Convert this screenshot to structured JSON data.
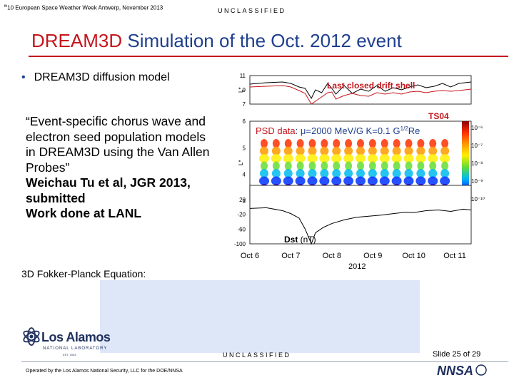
{
  "header": {
    "meta_sup": "th",
    "meta": "10  European Space Weather Week Antwerp, November 2013",
    "classification": "UNCLASSIFIED"
  },
  "title": {
    "highlight": "DREAM3D",
    "rest": " Simulation of the Oct. 2012 event"
  },
  "bullet": "DREAM3D diffusion model",
  "quote": {
    "text": "“Event-specific chorus wave and electron seed population models in DREAM3D using the Van Allen Probes”",
    "author": "Weichau Tu et al, JGR 2013, submitted",
    "note": "Work done at LANL"
  },
  "equation_label": "3D Fokker-Planck Equation:",
  "footer": {
    "classification": "UNCLASSIFIED",
    "slide": "Slide 25  of 29",
    "operated_by": "Operated by the Los Alamos National Security, LLC for the DOE/NNSA",
    "logo_name": "Los Alamos",
    "logo_sub": "NATIONAL LABORATORY",
    "logo_est": "EST. 1943",
    "nnsa": "NNSA"
  },
  "chart_data": [
    {
      "type": "line",
      "panel": "last closed drift shell",
      "series": [
        {
          "name": "Last closed drift shell",
          "color": "#000000",
          "x": [
            6.0,
            6.4,
            6.8,
            7.0,
            7.2,
            7.35,
            7.5,
            7.6,
            7.75,
            7.9,
            8.0,
            8.1,
            8.3,
            8.5,
            8.7,
            8.9,
            9.1,
            9.3,
            9.5,
            9.7,
            9.9,
            10.1,
            10.3,
            10.5,
            10.7,
            10.9,
            11.1,
            11.4
          ],
          "values": [
            9.8,
            10.0,
            10.1,
            9.9,
            9.4,
            9.2,
            7.8,
            9.0,
            8.6,
            9.9,
            9.2,
            8.4,
            9.6,
            8.5,
            9.1,
            8.8,
            9.6,
            8.8,
            9.3,
            9.0,
            9.4,
            9.7,
            9.3,
            9.5,
            9.9,
            9.4,
            9.9,
            10.1
          ]
        },
        {
          "name": "TS04",
          "color": "#c4161c",
          "x": [
            6.0,
            6.4,
            6.8,
            7.0,
            7.2,
            7.35,
            7.5,
            7.6,
            7.75,
            7.9,
            8.0,
            8.1,
            8.3,
            8.5,
            8.7,
            8.9,
            9.1,
            9.3,
            9.5,
            9.7,
            9.9,
            10.1,
            10.3,
            10.5,
            10.7,
            10.9,
            11.1,
            11.4
          ],
          "values": [
            9.4,
            9.5,
            9.6,
            9.4,
            8.9,
            8.5,
            7.0,
            7.4,
            8.0,
            8.6,
            8.7,
            7.7,
            8.2,
            8.5,
            8.2,
            8.1,
            8.6,
            8.4,
            8.6,
            8.4,
            8.7,
            8.8,
            8.6,
            8.8,
            8.9,
            8.8,
            8.9,
            9.1
          ]
        }
      ],
      "ylabel": "L*",
      "yticks": [
        "11",
        "9",
        "7"
      ],
      "ylim": [
        7,
        11
      ],
      "annotations": [
        "Last closed drift shell",
        "TS04"
      ]
    },
    {
      "type": "heatmap",
      "panel": "phase space density",
      "title_label": "PSD data",
      "title_value": ": μ=2000 MeV/G K=0.1 G",
      "title_sup": "1/2",
      "title_tail": "Re",
      "ylabel": "L*",
      "yticks": [
        "6",
        "5",
        "4",
        "3"
      ],
      "ylim": [
        3,
        6
      ],
      "colorbar_ticks": [
        "10⁻⁶",
        "10⁻⁷",
        "10⁻⁸",
        "10⁻⁹",
        "10⁻¹⁰"
      ],
      "colorbar_colors": [
        "#8b0000",
        "#ff3000",
        "#ff9900",
        "#ffee00",
        "#66dd33",
        "#00bbee",
        "#0033ff",
        "#4400aa"
      ]
    },
    {
      "type": "line",
      "panel": "Dst",
      "series_label": "Dst",
      "series_unit": " (nT)",
      "series": [
        {
          "name": "Dst",
          "color": "#000000",
          "x": [
            6.0,
            6.4,
            6.8,
            7.0,
            7.2,
            7.35,
            7.5,
            7.6,
            7.8,
            8.0,
            8.3,
            8.6,
            8.9,
            9.2,
            9.5,
            9.8,
            10.0,
            10.3,
            10.6,
            10.9,
            11.2,
            11.4
          ],
          "values": [
            -4,
            -2,
            -10,
            -18,
            -30,
            -60,
            -100,
            -70,
            -55,
            -45,
            -35,
            -28,
            -25,
            -22,
            -18,
            -14,
            -15,
            -10,
            -8,
            -12,
            -6,
            -8
          ]
        }
      ],
      "yticks": [
        "20",
        "-20",
        "-60",
        "-100"
      ],
      "ylim": [
        -100,
        20
      ]
    }
  ],
  "xaxis": {
    "ticks": [
      {
        "label": "Oct 6",
        "value": 6
      },
      {
        "label": "Oct 7",
        "value": 7
      },
      {
        "label": "Oct 8",
        "value": 8
      },
      {
        "label": "Oct 9",
        "value": 9
      },
      {
        "label": "Oct 10",
        "value": 10
      },
      {
        "label": "Oct 11",
        "value": 11
      }
    ],
    "year": "2012",
    "xlim": [
      6,
      11.4
    ]
  }
}
